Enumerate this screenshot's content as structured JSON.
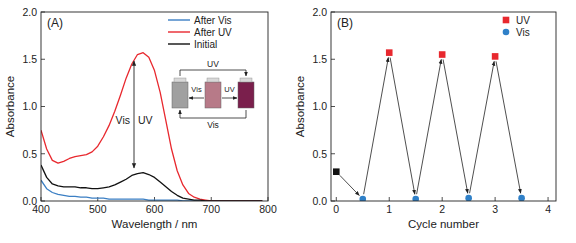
{
  "chart_data": [
    {
      "type": "line",
      "title": "(A)",
      "x_label": "Wavelength / nm",
      "y_label": "Absorbance",
      "x": [
        400,
        410,
        420,
        430,
        440,
        450,
        460,
        470,
        480,
        490,
        500,
        510,
        520,
        530,
        540,
        550,
        560,
        570,
        580,
        590,
        600,
        610,
        620,
        630,
        640,
        650,
        660,
        670,
        680,
        690,
        700,
        750,
        790
      ],
      "series": [
        {
          "name": "After Vis",
          "color": "#3b7fc4",
          "values": [
            0.22,
            0.13,
            0.09,
            0.07,
            0.06,
            0.05,
            0.05,
            0.04,
            0.04,
            0.03,
            0.03,
            0.03,
            0.02,
            0.02,
            0.02,
            0.02,
            0.02,
            0.02,
            0.02,
            0.01,
            0.01,
            0.01,
            0.01,
            0.01,
            0.01,
            0,
            0,
            0,
            0,
            0,
            0,
            0,
            0
          ]
        },
        {
          "name": "After UV",
          "color": "#e8282e",
          "values": [
            0.75,
            0.55,
            0.43,
            0.4,
            0.42,
            0.45,
            0.47,
            0.48,
            0.49,
            0.52,
            0.58,
            0.68,
            0.8,
            0.95,
            1.12,
            1.3,
            1.45,
            1.55,
            1.57,
            1.52,
            1.38,
            1.15,
            0.85,
            0.55,
            0.32,
            0.17,
            0.08,
            0.04,
            0.02,
            0.01,
            0,
            0,
            0
          ]
        },
        {
          "name": "Initial",
          "color": "#111111",
          "values": [
            0.38,
            0.25,
            0.18,
            0.16,
            0.15,
            0.15,
            0.15,
            0.14,
            0.14,
            0.13,
            0.13,
            0.14,
            0.15,
            0.17,
            0.2,
            0.23,
            0.27,
            0.29,
            0.3,
            0.28,
            0.25,
            0.2,
            0.15,
            0.1,
            0.06,
            0.03,
            0.02,
            0.01,
            0.01,
            0,
            0,
            0,
            0
          ]
        }
      ],
      "xlim": [
        400,
        800
      ],
      "xticks": [
        400,
        500,
        600,
        700,
        800
      ],
      "ylim": [
        0,
        2.0
      ],
      "yticks": [
        {
          "value": 0,
          "label": "0.0"
        },
        {
          "value": 0.5,
          "label": "0.5"
        },
        {
          "value": 1.0,
          "label": "1.0"
        },
        {
          "value": 1.5,
          "label": "1.5"
        },
        {
          "value": 2.0,
          "label": "2.0"
        }
      ],
      "legend": "upper right",
      "annotations": {
        "arrow": [
          "Vis",
          "UV"
        ],
        "inset": [
          "UV",
          "Vis",
          "UV",
          "Vis"
        ]
      }
    },
    {
      "type": "scatter",
      "title": "(B)",
      "x_label": "Cycle number",
      "y_label": "Absorbance",
      "series": [
        {
          "color": "#111111",
          "marker": "square",
          "x": [
            0
          ],
          "values": [
            0.31
          ]
        },
        {
          "name": "UV",
          "color": "#e8282e",
          "marker": "square",
          "x": [
            1,
            2,
            3
          ],
          "values": [
            1.57,
            1.55,
            1.53
          ]
        },
        {
          "name": "Vis",
          "color": "#2f80c8",
          "marker": "circle",
          "x": [
            0.5,
            1.5,
            2.5,
            3.5
          ],
          "values": [
            0.02,
            0.02,
            0.03,
            0.03
          ]
        }
      ],
      "xlim": [
        -0.1,
        4.15
      ],
      "xticks": [
        0,
        1,
        2,
        3,
        4
      ],
      "ylim": [
        0,
        2.0
      ],
      "yticks": [
        {
          "value": 0,
          "label": "0.0"
        },
        {
          "value": 0.5,
          "label": "0.5"
        },
        {
          "value": 1.0,
          "label": "1.0"
        },
        {
          "value": 1.5,
          "label": "1.5"
        },
        {
          "value": 2.0,
          "label": "2.0"
        }
      ],
      "legend": "upper right"
    }
  ]
}
